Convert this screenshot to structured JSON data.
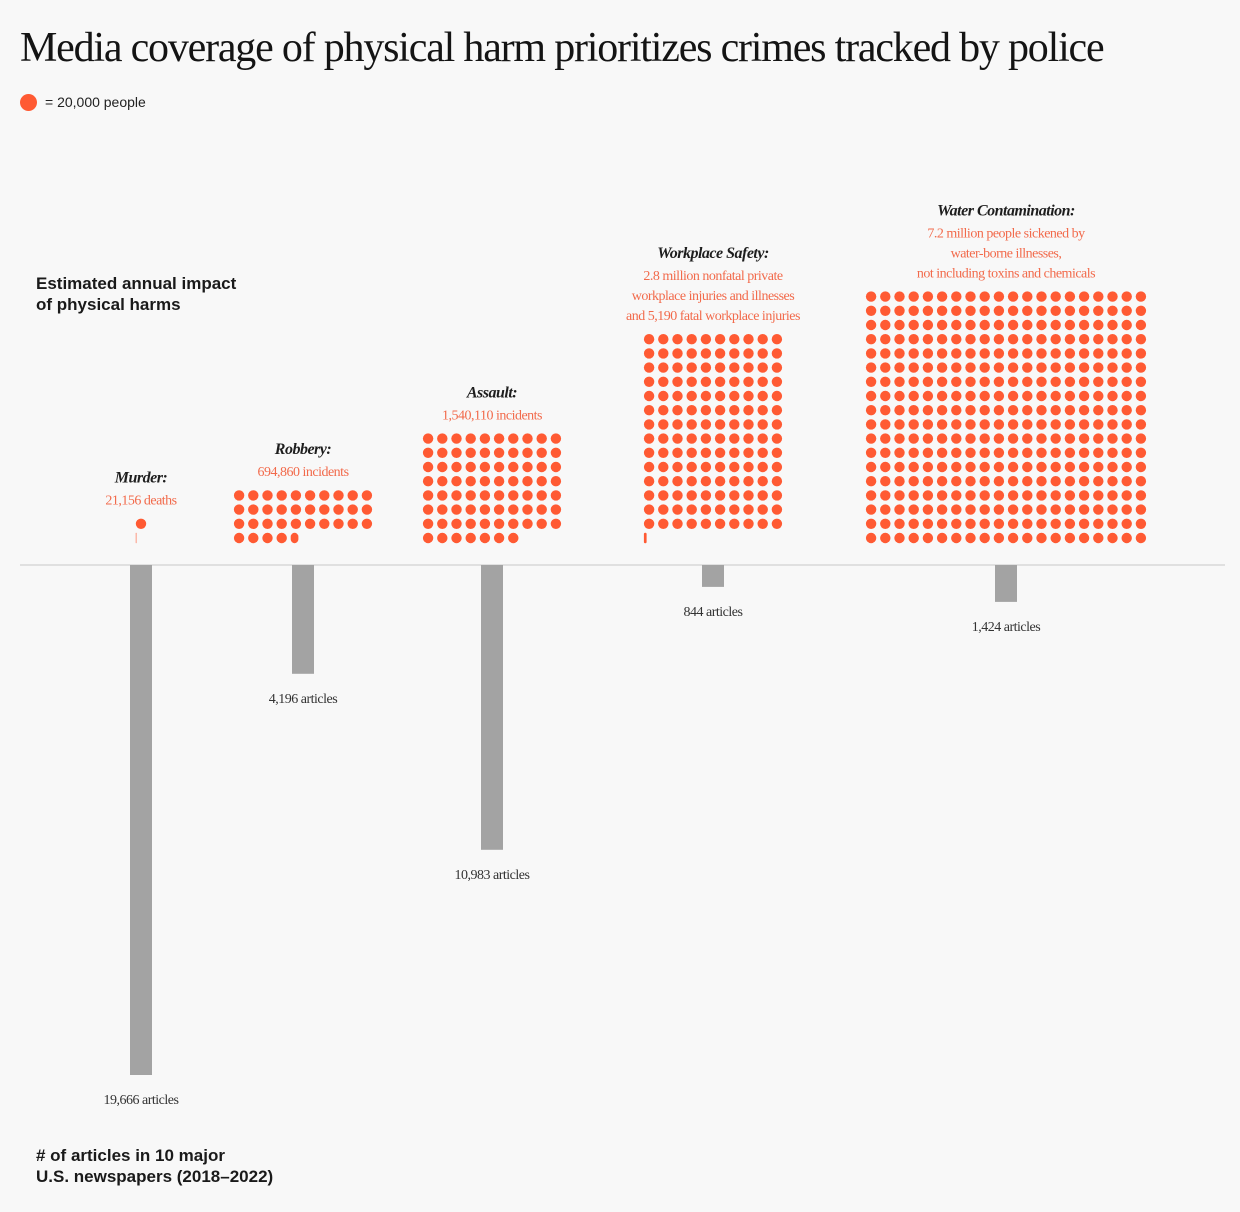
{
  "title": "Media coverage of physical harm prioritizes crimes tracked by police",
  "legend": {
    "text": "= 20,000 people",
    "dot_color": "#ff5a33"
  },
  "impact_label": [
    "Estimated annual impact",
    "of physical harms"
  ],
  "articles_label": [
    "# of articles in 10 major",
    "U.S. newspapers (2018–2022)"
  ],
  "colors": {
    "dot": "#ff5a33",
    "bar": "#a3a3a3",
    "baseline": "#c8c8c8",
    "annotation": "#f26a4b"
  },
  "chart_data": {
    "type": "bar",
    "unit_per_dot": 20000,
    "categories": [
      "Murder:",
      "Robbery:",
      "Assault:",
      "Workplace Safety:",
      "Water Contamination:"
    ],
    "people": [
      21156,
      694860,
      1540110,
      2805190,
      7200000
    ],
    "descriptions": [
      [
        "21,156 deaths"
      ],
      [
        "694,860 incidents"
      ],
      [
        "1,540,110 incidents"
      ],
      [
        "2.8 million nonfatal private",
        "workplace injuries and illnesses",
        "and 5,190 fatal workplace injuries"
      ],
      [
        "7.2 million people sickened by",
        "water-borne illnesses,",
        "not including toxins and chemicals"
      ]
    ],
    "articles": [
      19666,
      4196,
      10983,
      844,
      1424
    ],
    "article_labels": [
      "19,666 articles",
      "4,196 articles",
      "10,983 articles",
      "844 articles",
      "1,424 articles"
    ]
  }
}
